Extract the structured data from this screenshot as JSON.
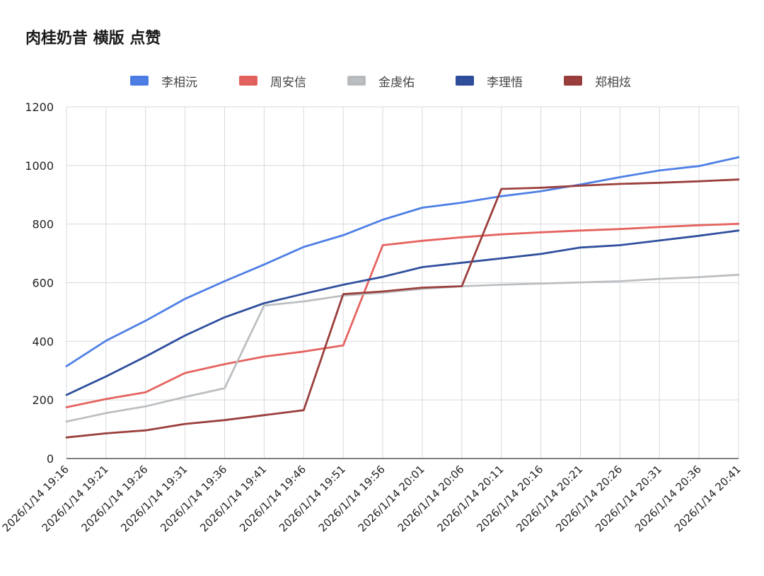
{
  "chart_data": {
    "type": "line",
    "title": "肉桂奶昔 横版 点赞",
    "xlabel": "",
    "ylabel": "",
    "ylim": [
      0,
      1200
    ],
    "yticks": [
      0,
      200,
      400,
      600,
      800,
      1000,
      1200
    ],
    "legend_position": "top",
    "grid": true,
    "categories": [
      "2026/1/14 19:16",
      "2026/1/14 19:21",
      "2026/1/14 19:26",
      "2026/1/14 19:31",
      "2026/1/14 19:36",
      "2026/1/14 19:41",
      "2026/1/14 19:46",
      "2026/1/14 19:51",
      "2026/1/14 19:56",
      "2026/1/14 20:01",
      "2026/1/14 20:06",
      "2026/1/14 20:11",
      "2026/1/14 20:16",
      "2026/1/14 20:21",
      "2026/1/14 20:26",
      "2026/1/14 20:31",
      "2026/1/14 20:36",
      "2026/1/14 20:41"
    ],
    "series": [
      {
        "name": "李相沅",
        "color": "#4e7fe6",
        "values": [
          315,
          402,
          470,
          545,
          605,
          662,
          722,
          762,
          815,
          856,
          873,
          895,
          912,
          935,
          960,
          983,
          998,
          1028
        ]
      },
      {
        "name": "周安信",
        "color": "#e5635f",
        "values": [
          175,
          203,
          226,
          292,
          322,
          348,
          365,
          386,
          728,
          743,
          755,
          765,
          772,
          778,
          783,
          790,
          796,
          801
        ]
      },
      {
        "name": "金虔佑",
        "color": "#bcbfc2",
        "values": [
          126,
          155,
          178,
          210,
          240,
          522,
          536,
          556,
          566,
          579,
          588,
          593,
          597,
          601,
          605,
          613,
          619,
          627
        ]
      },
      {
        "name": "李理悟",
        "color": "#2f4f9d",
        "values": [
          217,
          280,
          348,
          420,
          482,
          530,
          562,
          593,
          620,
          653,
          668,
          683,
          698,
          720,
          728,
          744,
          760,
          778
        ]
      },
      {
        "name": "郑相炫",
        "color": "#9a3f3c",
        "values": [
          72,
          86,
          96,
          118,
          131,
          148,
          165,
          561,
          570,
          583,
          588,
          920,
          924,
          931,
          937,
          941,
          946,
          952
        ]
      }
    ]
  }
}
